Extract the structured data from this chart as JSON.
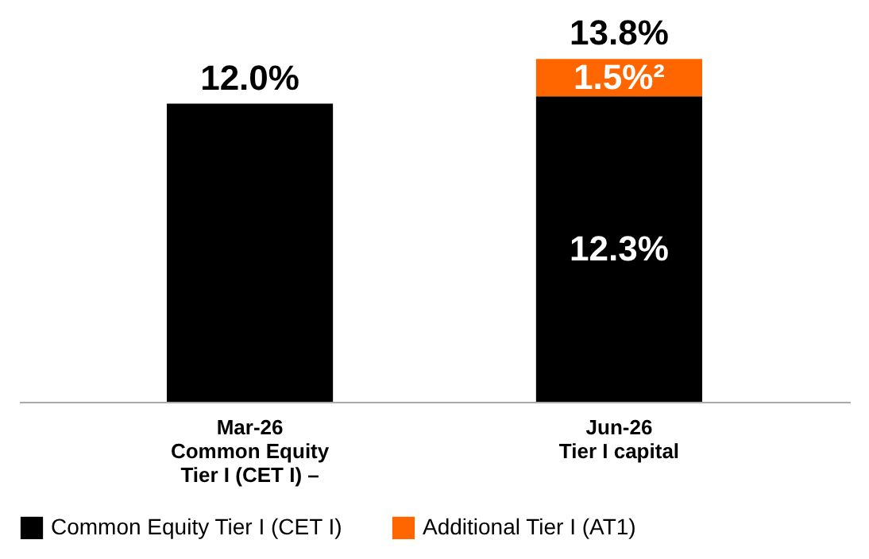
{
  "chart_data": {
    "type": "bar",
    "stacked": true,
    "categories": [
      "Mar-26\nCommon Equity\nTier I (CET I) –",
      "Jun-26\nTier I capital"
    ],
    "series": [
      {
        "name": "Common Equity Tier I (CET I)",
        "color": "#000000",
        "values": [
          12.0,
          12.3
        ],
        "value_labels": [
          null,
          "12.3%"
        ]
      },
      {
        "name": "Additional Tier I (AT1)",
        "color": "#ff6600",
        "values": [
          null,
          1.5
        ],
        "value_labels": [
          null,
          "1.5%²"
        ]
      }
    ],
    "totals": [
      "12.0%",
      "13.8%"
    ],
    "legend": "bottom",
    "grid": false
  }
}
